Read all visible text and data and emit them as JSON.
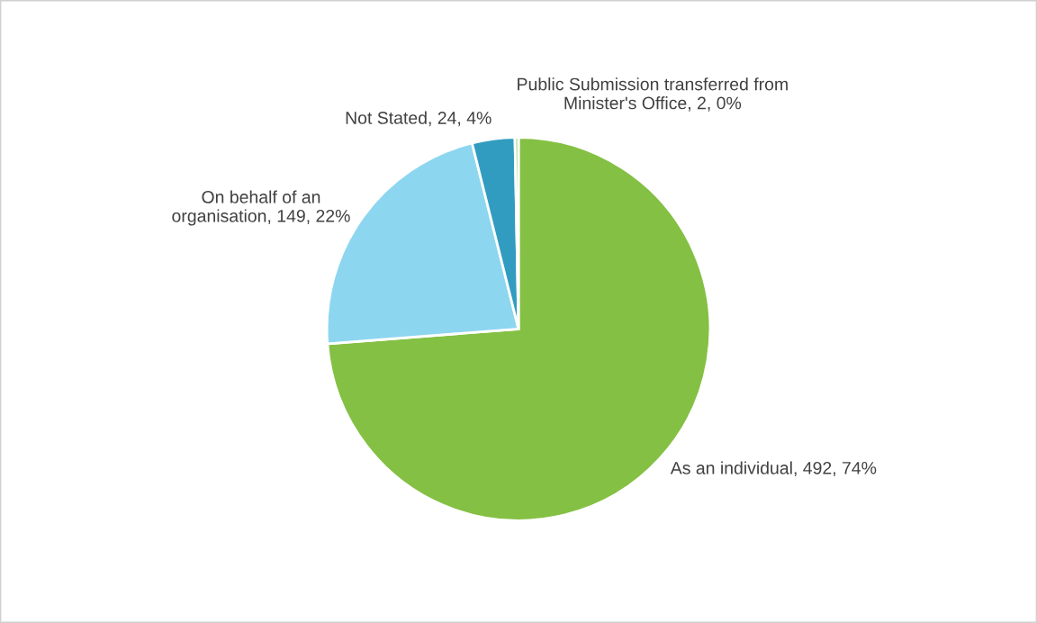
{
  "chart_data": {
    "type": "pie",
    "categories": [
      "As an individual",
      "On behalf of an\norganisation",
      "Not Stated",
      "Public Submission transferred from\nMinister's Office"
    ],
    "values": [
      492,
      149,
      24,
      2
    ],
    "value_labels": [
      "492, 74%",
      "149, 22%",
      "24, 4%",
      "2, 0%"
    ],
    "colors": [
      "#84c043",
      "#8dd6f0",
      "#319cbf",
      "#a9d18e"
    ],
    "legend": false
  }
}
